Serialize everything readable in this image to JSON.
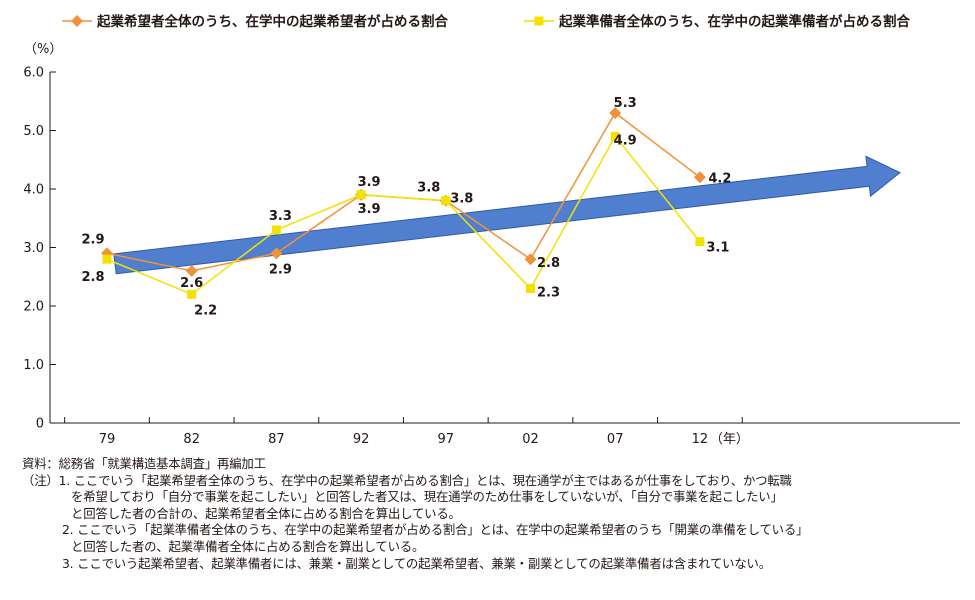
{
  "chart_data": {
    "type": "line",
    "x": [
      "79",
      "82",
      "87",
      "92",
      "97",
      "02",
      "07",
      "12"
    ],
    "x_unit": "（年）",
    "y_unit": "（%）",
    "ylim": [
      0,
      6.0
    ],
    "yticks": [
      "0",
      "1.0",
      "2.0",
      "3.0",
      "4.0",
      "5.0",
      "6.0"
    ],
    "grid": false,
    "legend_position": "top",
    "trend_arrow": true,
    "series": [
      {
        "name": "起業希望者全体のうち、在学中の起業希望者が占める割合",
        "values": [
          2.9,
          2.6,
          2.9,
          3.9,
          3.8,
          2.8,
          5.3,
          4.2
        ],
        "labels": [
          "2.9",
          "2.6",
          "2.9",
          "3.9",
          "3.8",
          "2.8",
          "5.3",
          "4.2"
        ],
        "color": "#f0923b",
        "marker": "diamond"
      },
      {
        "name": "起業準備者全体のうち、在学中の起業準備者が占める割合",
        "values": [
          2.8,
          2.2,
          3.3,
          3.9,
          3.8,
          2.3,
          4.9,
          3.1
        ],
        "labels": [
          "2.8",
          "2.2",
          "3.3",
          "3.9",
          "3.8",
          "2.3",
          "4.9",
          "3.1"
        ],
        "color": "#f3e100",
        "marker": "square"
      }
    ],
    "arrow_color": "#4f7fce"
  },
  "notes": {
    "source": "資料：総務省「就業構造基本調査」再編加工",
    "note1_a": "（注）1. ここでいう「起業希望者全体のうち、在学中の起業希望者が占める割合」とは、現在通学が主ではあるが仕事をしており、かつ転職",
    "note1_b": "を希望しており「自分で事業を起こしたい」と回答した者又は、現在通学のため仕事をしていないが、「自分で事業を起こしたい」",
    "note1_c": "と回答した者の合計の、起業希望者全体に占める割合を算出している。",
    "note2_a": "2. ここでいう「起業準備者全体のうち、在学中の起業希望者が占める割合」とは、在学中の起業希望者のうち「開業の準備をしている」",
    "note2_b": "と回答した者の、起業準備者全体に占める割合を算出している。",
    "note3": "3. ここでいう起業希望者、起業準備者には、兼業・副業としての起業希望者、兼業・副業としての起業準備者は含まれていない。"
  }
}
